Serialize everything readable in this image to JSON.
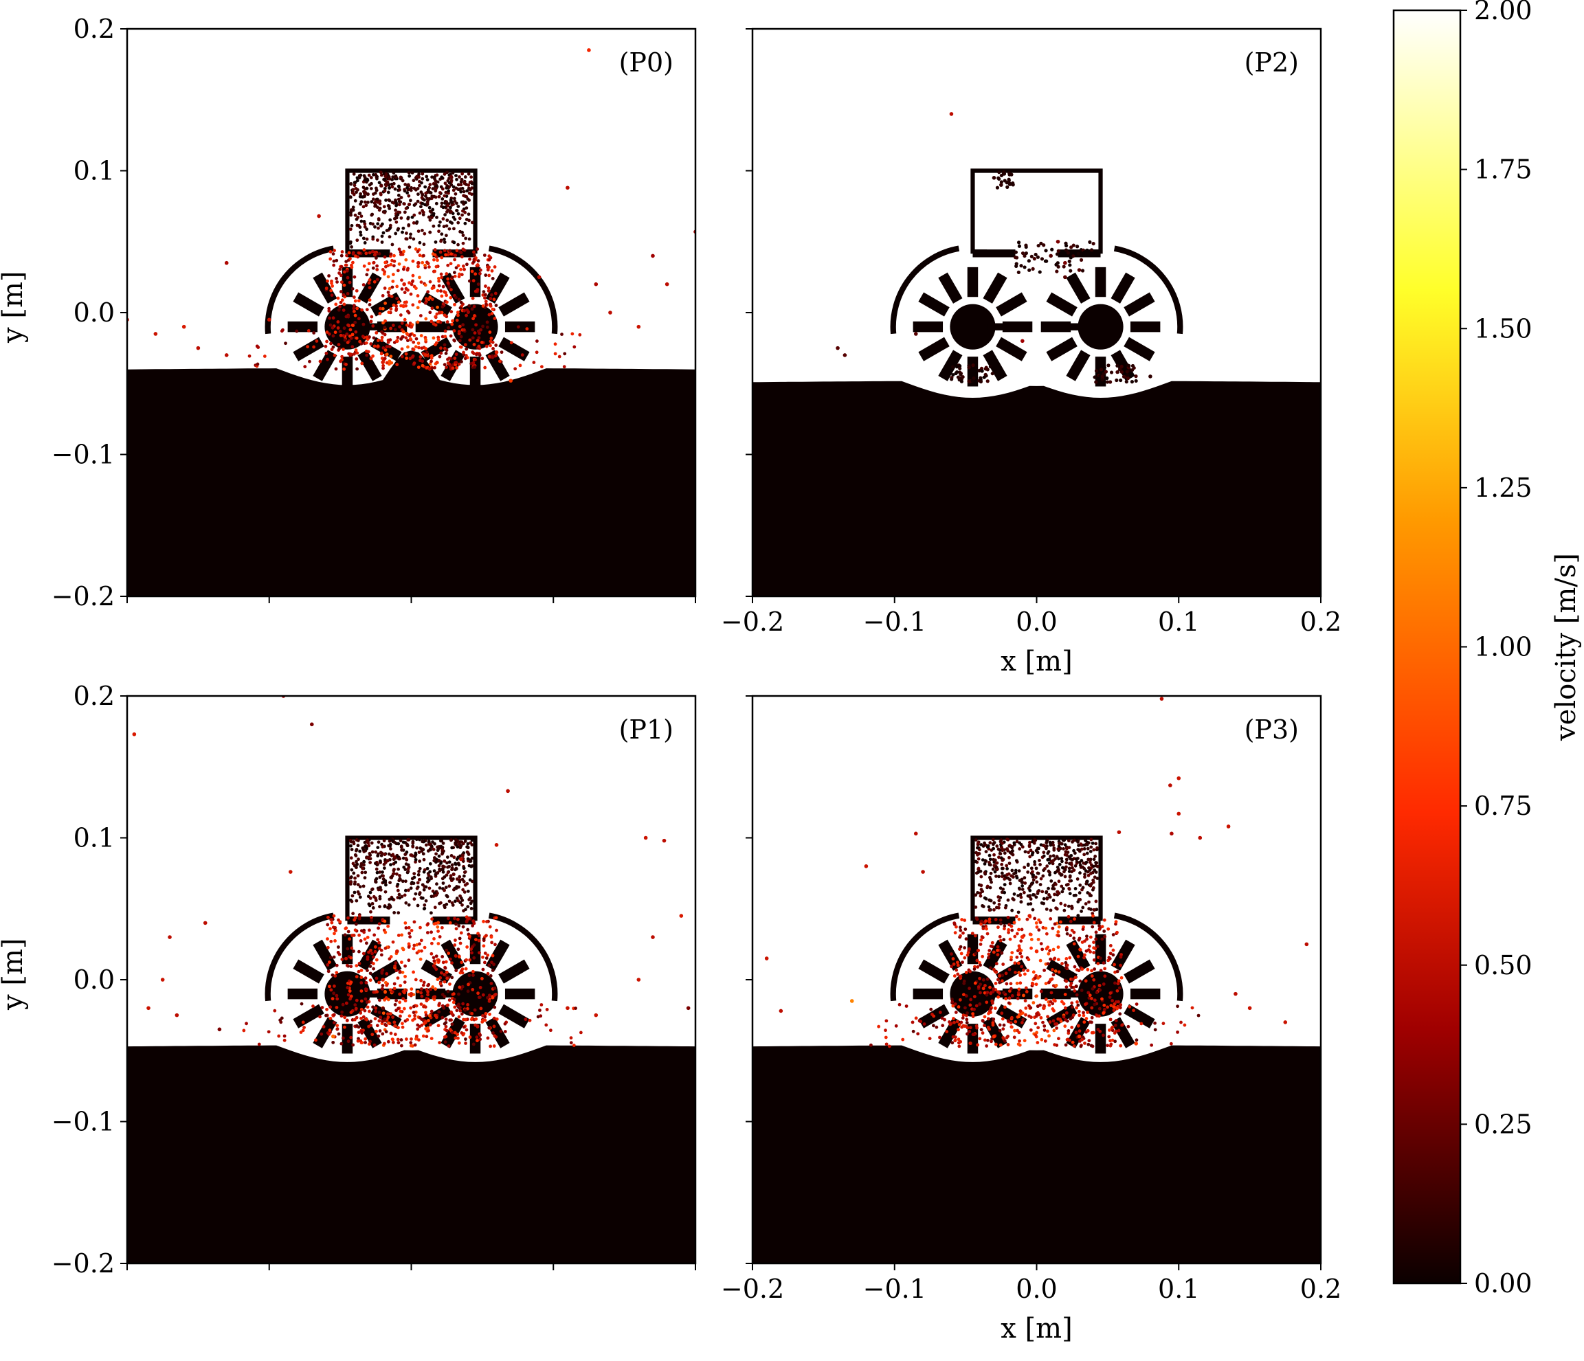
{
  "chart_data": {
    "type": "scatter",
    "description_units": {
      "x": "m",
      "y": "m",
      "color": "m/s"
    },
    "xlim": [
      -0.2,
      0.2
    ],
    "ylim": [
      -0.2,
      0.2
    ],
    "xlabel": "x [m]",
    "ylabel": "y [m]",
    "xticks": [
      "−0.2",
      "−0.1",
      "0.0",
      "0.1",
      "0.2"
    ],
    "yticks": [
      "0.2",
      "0.1",
      "0.0",
      "−0.1",
      "−0.2"
    ],
    "x_tick_values": [
      -0.2,
      -0.1,
      0.0,
      0.1,
      0.2
    ],
    "y_tick_values": [
      0.2,
      0.1,
      0.0,
      -0.1,
      -0.2
    ],
    "colorbar": {
      "label": "velocity [m/s]",
      "range": [
        0.0,
        2.0
      ],
      "ticks": [
        "0.00",
        "0.25",
        "0.50",
        "0.75",
        "1.00",
        "1.25",
        "1.50",
        "1.75",
        "2.00"
      ],
      "tick_values": [
        0.0,
        0.25,
        0.5,
        0.75,
        1.0,
        1.25,
        1.5,
        1.75,
        2.0
      ],
      "colormap": "hot",
      "colors": [
        "#0b0000",
        "#a00000",
        "#ff2a00",
        "#ff9a00",
        "#ffff2a",
        "#ffffff"
      ]
    },
    "rover": {
      "wheel_centers_x": [
        -0.045,
        0.045
      ],
      "wheel_center_y": -0.01,
      "hopper_x": [
        -0.045,
        0.045
      ],
      "hopper_y": [
        0.04,
        0.1
      ]
    },
    "panels": [
      {
        "label": "(P0)",
        "ground_level_y": -0.04,
        "show_xlabel": false,
        "show_ylabel": true,
        "hopper_fill": "full",
        "particle_density": "high",
        "particles": [
          {
            "x": 0.125,
            "y": 0.185,
            "v": 0.7
          },
          {
            "x": 0.11,
            "y": 0.088,
            "v": 0.5
          },
          {
            "x": 0.2,
            "y": 0.057,
            "v": 0.45
          },
          {
            "x": 0.17,
            "y": 0.04,
            "v": 0.4
          },
          {
            "x": 0.18,
            "y": 0.02,
            "v": 0.5
          },
          {
            "x": 0.13,
            "y": 0.02,
            "v": 0.45
          },
          {
            "x": -0.13,
            "y": 0.035,
            "v": 0.45
          },
          {
            "x": -0.065,
            "y": 0.068,
            "v": 0.5
          },
          {
            "x": -0.2,
            "y": -0.005,
            "v": 0.5
          },
          {
            "x": -0.18,
            "y": -0.015,
            "v": 0.55
          },
          {
            "x": -0.16,
            "y": -0.01,
            "v": 0.6
          },
          {
            "x": -0.15,
            "y": -0.025,
            "v": 0.5
          },
          {
            "x": -0.13,
            "y": -0.03,
            "v": 0.5
          },
          {
            "x": -0.1,
            "y": -0.005,
            "v": 0.55
          },
          {
            "x": 0.16,
            "y": -0.01,
            "v": 0.55
          },
          {
            "x": 0.14,
            "y": 0.0,
            "v": 0.5
          },
          {
            "x": 0.09,
            "y": 0.025,
            "v": 0.5
          },
          {
            "x": 0.06,
            "y": -0.028,
            "v": 0.65
          },
          {
            "x": -0.01,
            "y": -0.02,
            "v": 0.7
          },
          {
            "x": 0.0,
            "y": -0.01,
            "v": 0.6
          },
          {
            "x": 0.01,
            "y": -0.03,
            "v": 0.65
          },
          {
            "x": -0.005,
            "y": 0.02,
            "v": 0.6
          },
          {
            "x": 0.005,
            "y": 0.035,
            "v": 0.5
          },
          {
            "x": -0.02,
            "y": -0.035,
            "v": 0.6
          },
          {
            "x": 0.02,
            "y": 0.0,
            "v": 0.55
          },
          {
            "x": 0.07,
            "y": -0.048,
            "v": 0.8
          }
        ]
      },
      {
        "label": "(P2)",
        "ground_level_y": -0.049,
        "show_xlabel": true,
        "show_ylabel": false,
        "hopper_fill": "empty",
        "particle_density": "low",
        "particles": [
          {
            "x": -0.06,
            "y": 0.14,
            "v": 0.5
          },
          {
            "x": -0.085,
            "y": -0.015,
            "v": 0.2
          },
          {
            "x": -0.14,
            "y": -0.025,
            "v": 0.2
          },
          {
            "x": -0.135,
            "y": -0.03,
            "v": 0.2
          },
          {
            "x": -0.01,
            "y": -0.02,
            "v": 0.4
          },
          {
            "x": -0.03,
            "y": 0.095,
            "v": 0.1
          },
          {
            "x": -0.025,
            "y": 0.09,
            "v": 0.1
          },
          {
            "x": 0.015,
            "y": 0.05,
            "v": 0.3
          },
          {
            "x": 0.02,
            "y": 0.035,
            "v": 0.3
          },
          {
            "x": 0.01,
            "y": 0.04,
            "v": 0.2
          },
          {
            "x": 0.02,
            "y": 0.025,
            "v": 0.2
          },
          {
            "x": 0.03,
            "y": 0.03,
            "v": 0.2
          },
          {
            "x": 0.08,
            "y": -0.045,
            "v": 0.1
          }
        ]
      },
      {
        "label": "(P1)",
        "ground_level_y": -0.047,
        "show_xlabel": false,
        "show_ylabel": true,
        "hopper_fill": "full",
        "particle_density": "high",
        "particles": [
          {
            "x": -0.09,
            "y": 0.2,
            "v": 0.4
          },
          {
            "x": -0.07,
            "y": 0.18,
            "v": 0.3
          },
          {
            "x": -0.195,
            "y": 0.173,
            "v": 0.6
          },
          {
            "x": 0.068,
            "y": 0.133,
            "v": 0.5
          },
          {
            "x": 0.165,
            "y": 0.1,
            "v": 0.55
          },
          {
            "x": 0.178,
            "y": 0.098,
            "v": 0.5
          },
          {
            "x": 0.06,
            "y": 0.095,
            "v": 0.55
          },
          {
            "x": 0.035,
            "y": 0.085,
            "v": 0.5
          },
          {
            "x": -0.085,
            "y": 0.076,
            "v": 0.55
          },
          {
            "x": 0.19,
            "y": 0.045,
            "v": 0.6
          },
          {
            "x": -0.145,
            "y": 0.04,
            "v": 0.5
          },
          {
            "x": -0.17,
            "y": 0.03,
            "v": 0.5
          },
          {
            "x": 0.17,
            "y": 0.03,
            "v": 0.5
          },
          {
            "x": -0.175,
            "y": 0.0,
            "v": 0.55
          },
          {
            "x": 0.16,
            "y": 0.0,
            "v": 0.55
          },
          {
            "x": -0.135,
            "y": -0.035,
            "v": 0.3
          },
          {
            "x": 0.195,
            "y": -0.02,
            "v": 0.3
          },
          {
            "x": -0.185,
            "y": -0.02,
            "v": 0.55
          },
          {
            "x": -0.165,
            "y": -0.025,
            "v": 0.5
          },
          {
            "x": 0.11,
            "y": -0.02,
            "v": 0.55
          },
          {
            "x": 0.13,
            "y": -0.025,
            "v": 0.55
          },
          {
            "x": -0.055,
            "y": -0.04,
            "v": 1.0
          },
          {
            "x": 0.0,
            "y": -0.01,
            "v": 0.6
          },
          {
            "x": -0.01,
            "y": 0.02,
            "v": 0.6
          },
          {
            "x": 0.01,
            "y": -0.03,
            "v": 0.65
          },
          {
            "x": -0.02,
            "y": 0.0,
            "v": 0.6
          }
        ]
      },
      {
        "label": "(P3)",
        "ground_level_y": -0.047,
        "show_xlabel": true,
        "show_ylabel": false,
        "hopper_fill": "full",
        "particle_density": "high",
        "particles": [
          {
            "x": 0.088,
            "y": 0.198,
            "v": 0.5
          },
          {
            "x": 0.1,
            "y": 0.142,
            "v": 0.55
          },
          {
            "x": 0.094,
            "y": 0.137,
            "v": 0.5
          },
          {
            "x": 0.1,
            "y": 0.117,
            "v": 0.55
          },
          {
            "x": 0.115,
            "y": 0.1,
            "v": 0.5
          },
          {
            "x": 0.095,
            "y": 0.103,
            "v": 0.45
          },
          {
            "x": 0.058,
            "y": 0.104,
            "v": 0.5
          },
          {
            "x": 0.135,
            "y": 0.108,
            "v": 0.55
          },
          {
            "x": -0.085,
            "y": 0.103,
            "v": 0.5
          },
          {
            "x": -0.12,
            "y": 0.08,
            "v": 0.55
          },
          {
            "x": -0.08,
            "y": 0.076,
            "v": 0.5
          },
          {
            "x": 0.19,
            "y": 0.025,
            "v": 0.5
          },
          {
            "x": -0.19,
            "y": 0.015,
            "v": 0.55
          },
          {
            "x": -0.13,
            "y": -0.015,
            "v": 1.1
          },
          {
            "x": -0.18,
            "y": -0.022,
            "v": 0.5
          },
          {
            "x": 0.15,
            "y": -0.02,
            "v": 0.55
          },
          {
            "x": 0.14,
            "y": -0.01,
            "v": 0.5
          },
          {
            "x": 0.175,
            "y": -0.03,
            "v": 0.55
          },
          {
            "x": 0.0,
            "y": 0.02,
            "v": 0.7
          },
          {
            "x": -0.01,
            "y": 0.03,
            "v": 0.7
          },
          {
            "x": 0.01,
            "y": 0.0,
            "v": 0.65
          },
          {
            "x": -0.005,
            "y": 0.045,
            "v": 0.6
          },
          {
            "x": 0.005,
            "y": -0.02,
            "v": 0.65
          },
          {
            "x": -0.03,
            "y": -0.04,
            "v": 0.75
          },
          {
            "x": 0.03,
            "y": -0.04,
            "v": 0.75
          },
          {
            "x": 0.07,
            "y": -0.045,
            "v": 0.8
          }
        ]
      }
    ]
  }
}
